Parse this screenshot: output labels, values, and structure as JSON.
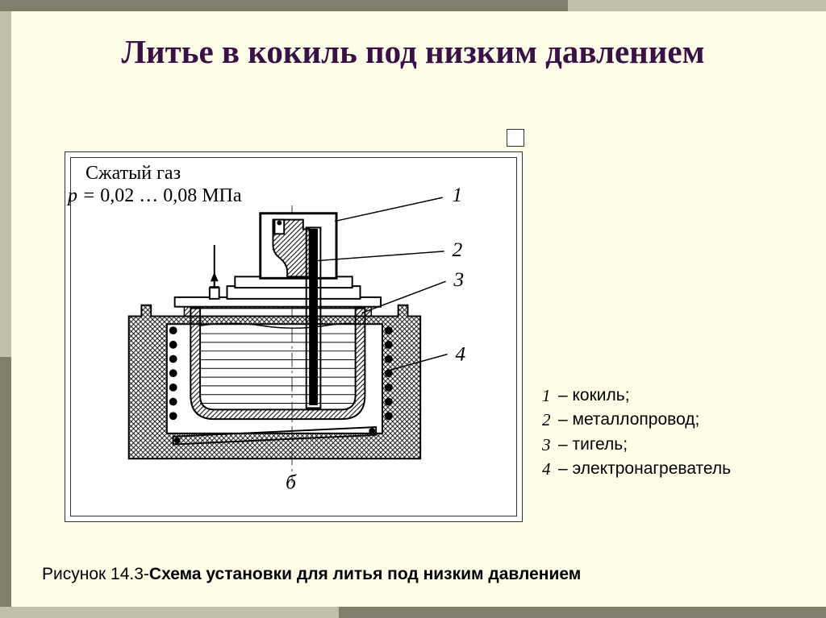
{
  "colors": {
    "bg": "#fdfde8",
    "bar_light": "#c0c0ab",
    "bar_dark": "#807f6c",
    "title": "#3a1046",
    "stroke": "#000000"
  },
  "title": "Литье в кокиль под низким давлением",
  "annotation": {
    "line1": "Сжатый газ",
    "line2_prefix": "p = ",
    "line2_value": "0,02 … 0,08 МПа"
  },
  "diagram": {
    "sub_label": "б",
    "callouts": [
      "1",
      "2",
      "3",
      "4"
    ]
  },
  "legend": {
    "items": [
      {
        "num": "1",
        "label": "кокиль;"
      },
      {
        "num": "2",
        "label": "металлопровод;"
      },
      {
        "num": "3",
        "label": "тигель;"
      },
      {
        "num": "4",
        "label": "электронагреватель"
      }
    ]
  },
  "caption": {
    "prefix": "Рисунок 14.3-",
    "bold": "Схема установки для литья под низким давлением"
  },
  "geometry": {
    "svg_viewbox": "0 0 560 452",
    "hatch_spacing": 6,
    "coil_radius": 5,
    "coil_count_per_side": 7,
    "liquid_lines": 9
  }
}
